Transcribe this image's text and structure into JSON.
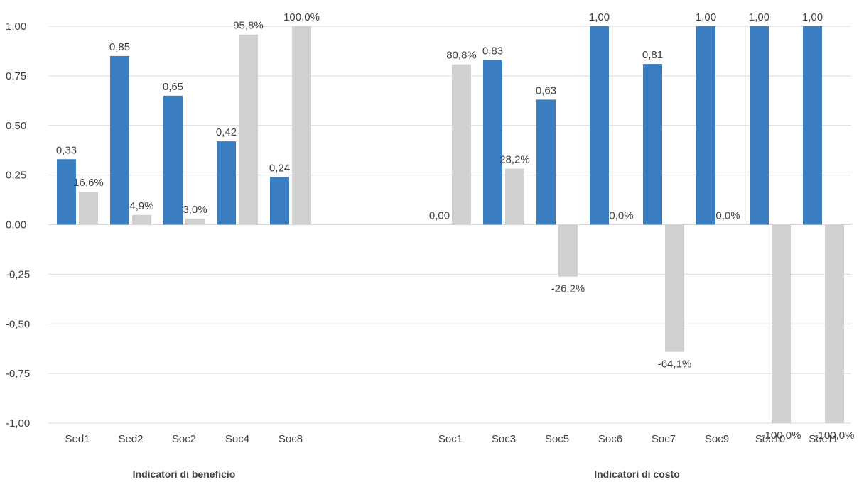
{
  "chart_data": {
    "type": "bar",
    "ylim": [
      -1,
      1
    ],
    "y_ticks": [
      1,
      0.75,
      0.5,
      0.25,
      0,
      -0.25,
      -0.5,
      -0.75,
      -1
    ],
    "y_tick_labels": [
      "1,00",
      "0,75",
      "0,50",
      "0,25",
      "0,00",
      "-0,25",
      "-0,50",
      "-0,75",
      "-1,00"
    ],
    "grid": true,
    "colors": {
      "series1": "#3a7dc0",
      "series2": "#d0d0d0",
      "grid": "#d9d9d9",
      "text": "#404040"
    },
    "groups": [
      {
        "label": "Indicatori di beneficio",
        "categories": [
          "Sed1",
          "Sed2",
          "Soc2",
          "Soc4",
          "Soc8"
        ],
        "series": [
          {
            "values": [
              0.33,
              0.85,
              0.65,
              0.42,
              0.24
            ],
            "labels": [
              "0,33",
              "0,85",
              "0,65",
              "0,42",
              "0,24"
            ]
          },
          {
            "values": [
              0.166,
              0.049,
              0.03,
              0.958,
              1.0
            ],
            "labels": [
              "16,6%",
              "4,9%",
              "3,0%",
              "95,8%",
              "100,0%"
            ]
          }
        ]
      },
      {
        "label": "Indicatori di costo",
        "categories": [
          "Soc1",
          "Soc3",
          "Soc5",
          "Soc6",
          "Soc7",
          "Soc9",
          "Soc10",
          "Soc11"
        ],
        "series": [
          {
            "values": [
              0.0,
              0.83,
              0.63,
              1.0,
              0.81,
              1.0,
              1.0,
              1.0
            ],
            "labels": [
              "0,00",
              "0,83",
              "0,63",
              "1,00",
              "0,81",
              "1,00",
              "1,00",
              "1,00"
            ]
          },
          {
            "values": [
              0.808,
              0.282,
              -0.262,
              0.0,
              -0.641,
              0.0,
              -1.0,
              -1.0
            ],
            "labels": [
              "80,8%",
              "28,2%",
              "-26,2%",
              "0,0%",
              "-64,1%",
              "0,0%",
              "-100,0%",
              "-100,0%"
            ]
          }
        ]
      }
    ]
  }
}
